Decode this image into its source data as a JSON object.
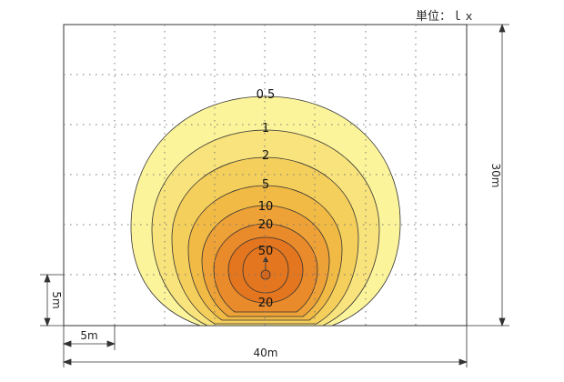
{
  "unit_label": "単位：ｌｘ",
  "contour_labels": {
    "c05": "0.5",
    "c1": "1",
    "c2": "2",
    "c5": "5",
    "c10": "10",
    "c20a": "20",
    "c50": "50",
    "c20b": "20"
  },
  "dimensions": {
    "width_total": "40m",
    "height_total": "30m",
    "width_grid": "5m",
    "height_grid": "5m"
  },
  "colors": {
    "c05": "#fcf49a",
    "c1": "#f9e37d",
    "c2": "#f5cf5c",
    "c5": "#f1ba45",
    "c10": "#eda136",
    "c20": "#e98a2b",
    "c50": "#e3761f",
    "grid": "#777777",
    "line": "#333333"
  }
}
